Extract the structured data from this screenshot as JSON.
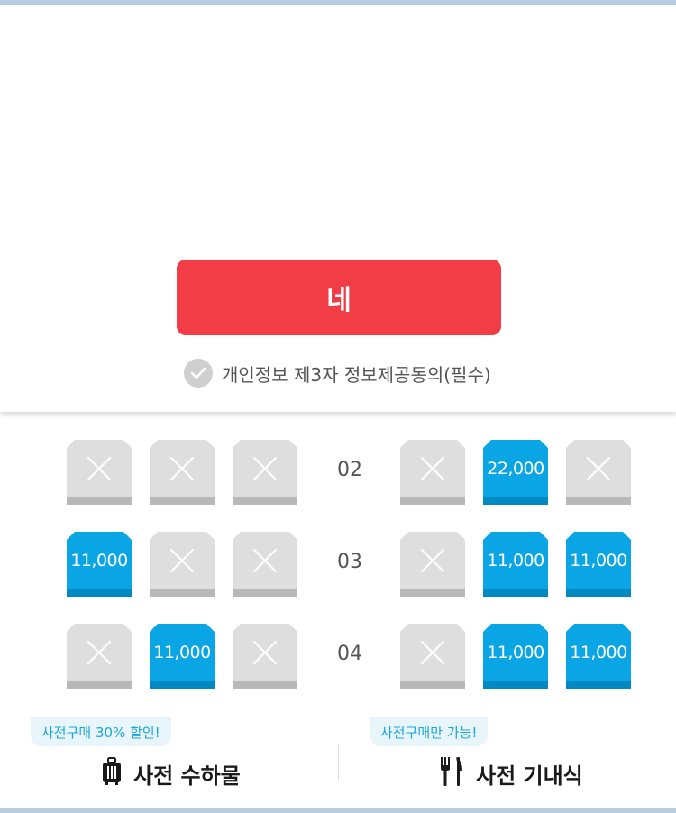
{
  "modal": {
    "confirm_label": "네",
    "consent_label": "개인정보 제3자 정보제공동의(필수)"
  },
  "seat_map": {
    "rows": [
      {
        "number": "02",
        "left": [
          {
            "status": "unavailable",
            "price": ""
          },
          {
            "status": "unavailable",
            "price": ""
          },
          {
            "status": "unavailable",
            "price": ""
          }
        ],
        "right": [
          {
            "status": "unavailable",
            "price": ""
          },
          {
            "status": "available",
            "price": "22,000"
          },
          {
            "status": "unavailable",
            "price": ""
          }
        ]
      },
      {
        "number": "03",
        "left": [
          {
            "status": "available",
            "price": "11,000"
          },
          {
            "status": "unavailable",
            "price": ""
          },
          {
            "status": "unavailable",
            "price": ""
          }
        ],
        "right": [
          {
            "status": "unavailable",
            "price": ""
          },
          {
            "status": "available",
            "price": "11,000"
          },
          {
            "status": "available",
            "price": "11,000"
          }
        ]
      },
      {
        "number": "04",
        "left": [
          {
            "status": "unavailable",
            "price": ""
          },
          {
            "status": "available",
            "price": "11,000"
          },
          {
            "status": "unavailable",
            "price": ""
          }
        ],
        "right": [
          {
            "status": "unavailable",
            "price": ""
          },
          {
            "status": "available",
            "price": "11,000"
          },
          {
            "status": "available",
            "price": "11,000"
          }
        ]
      }
    ]
  },
  "bottom_bar": {
    "baggage": {
      "badge": "사전구매 30% 할인!",
      "label": "사전 수하물",
      "icon": "luggage-icon"
    },
    "meal": {
      "badge": "사전구매만 가능!",
      "label": "사전 기내식",
      "icon": "fork-knife-icon"
    }
  },
  "colors": {
    "confirm_button": "#f23d47",
    "seat_available": "#0aa5e4",
    "seat_unavailable": "#dedede",
    "badge_text": "#1aa6dd"
  }
}
